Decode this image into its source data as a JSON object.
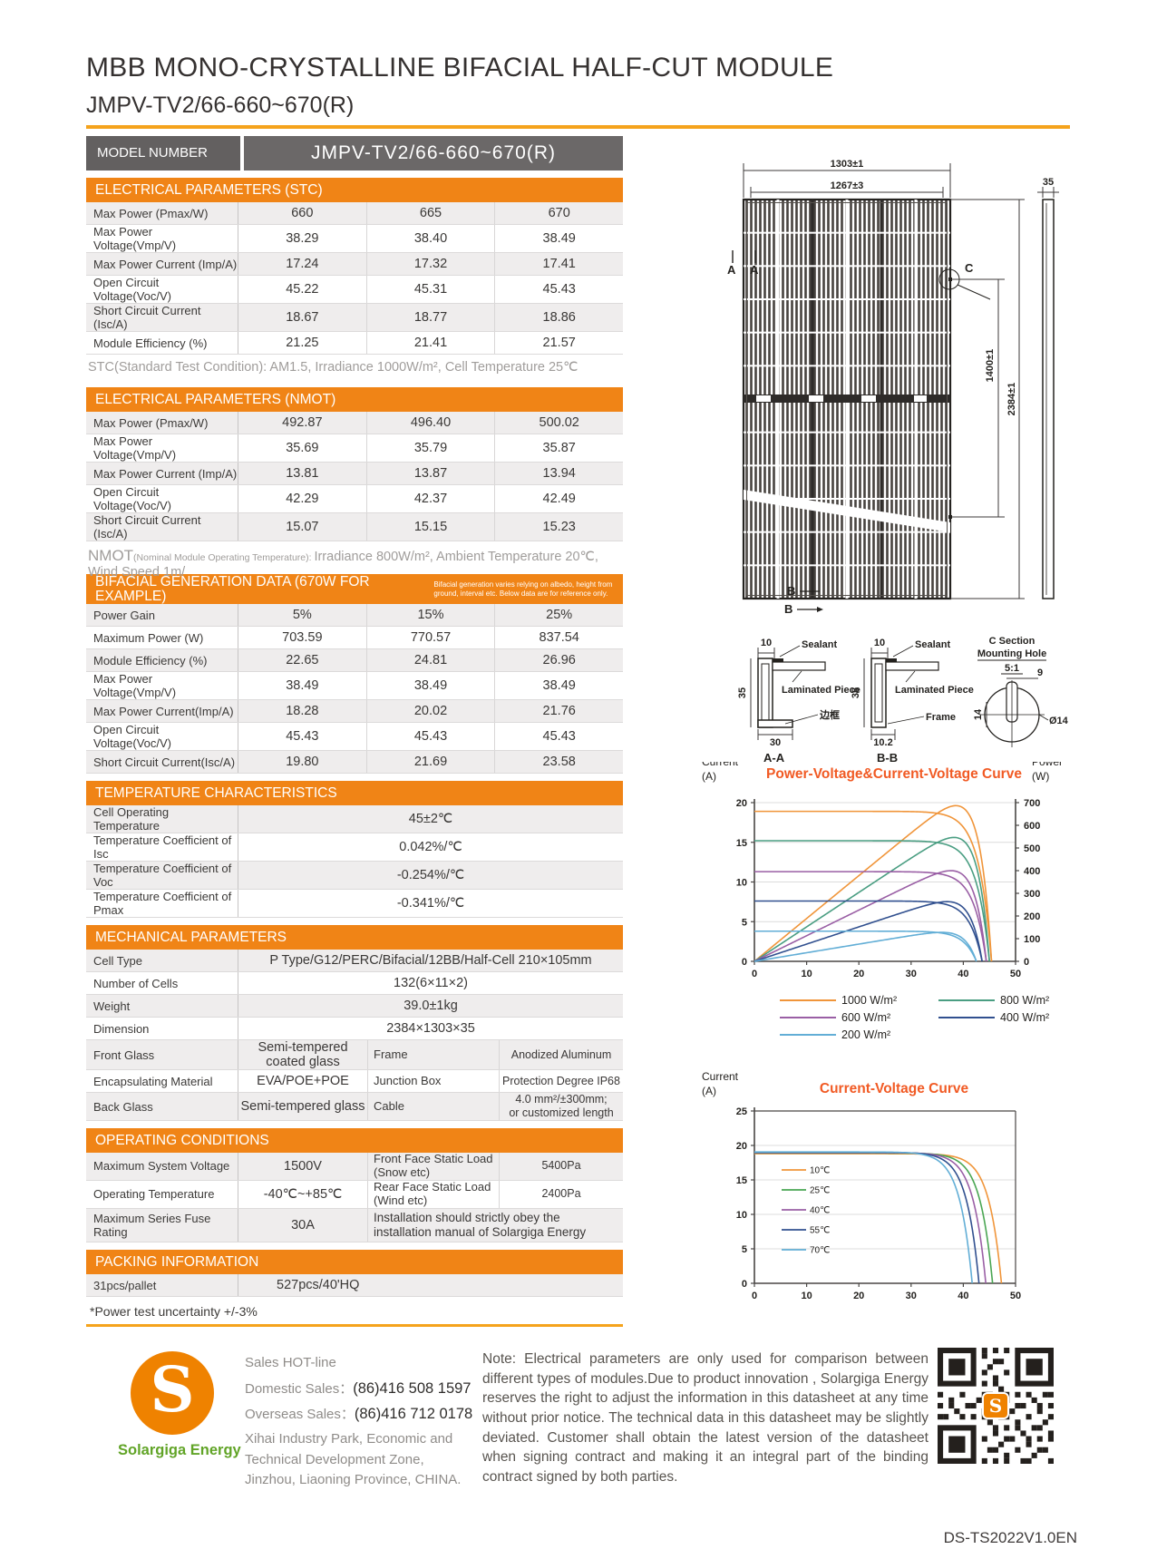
{
  "header": {
    "title": "MBB MONO-CRYSTALLINE BIFACIAL HALF-CUT MODULE",
    "subtitle": "JMPV-TV2/66-660~670(R)"
  },
  "model": {
    "label": "MODEL NUMBER",
    "value": "JMPV-TV2/66-660~670(R)"
  },
  "tables": {
    "stc": {
      "header": "ELECTRICAL PARAMETERS  (STC)",
      "rows": [
        {
          "label": "Max Power (Pmax/W)",
          "values": [
            "660",
            "665",
            "670"
          ]
        },
        {
          "label": "Max Power Voltage(Vmp/V)",
          "values": [
            "38.29",
            "38.40",
            "38.49"
          ]
        },
        {
          "label": "Max Power Current (Imp/A)",
          "values": [
            "17.24",
            "17.32",
            "17.41"
          ]
        },
        {
          "label": "Open Circuit Voltage(Voc/V)",
          "values": [
            "45.22",
            "45.31",
            "45.43"
          ]
        },
        {
          "label": "Short Circuit Current (Isc/A)",
          "values": [
            "18.67",
            "18.77",
            "18.86"
          ]
        },
        {
          "label": "Module Efficiency (%)",
          "values": [
            "21.25",
            "21.41",
            "21.57"
          ]
        }
      ],
      "note": "STC(Standard Test Condition): AM1.5, Irradiance 1000W/m², Cell Temperature 25℃"
    },
    "nmot": {
      "header": "ELECTRICAL PARAMETERS  (NMOT)",
      "rows": [
        {
          "label": "Max Power (Pmax/W)",
          "values": [
            "492.87",
            "496.40",
            "500.02"
          ]
        },
        {
          "label": "Max Power Voltage(Vmp/V)",
          "values": [
            "35.69",
            "35.79",
            "35.87"
          ]
        },
        {
          "label": "Max Power Current (Imp/A)",
          "values": [
            "13.81",
            "13.87",
            "13.94"
          ]
        },
        {
          "label": "Open Circuit Voltage(Voc/V)",
          "values": [
            "42.29",
            "42.37",
            "42.49"
          ]
        },
        {
          "label": "Short Circuit Current (Isc/A)",
          "values": [
            "15.07",
            "15.15",
            "15.23"
          ]
        }
      ],
      "note_prefix": "NMOT",
      "note_paren": "(Nominal Module Operating Temperature): ",
      "note_rest": "Irradiance 800W/m², Ambient Temperature 20℃, Wind Speed 1m/"
    },
    "bifacial": {
      "header": "BIFACIAL GENERATION DATA (670W FOR EXAMPLE)",
      "header_note": "Bifacial generation varies relying on albedo, height from ground, interval etc. Below data are for reference only.",
      "rows": [
        {
          "label": "Power Gain",
          "values": [
            "5%",
            "15%",
            "25%"
          ]
        },
        {
          "label": "Maximum Power (W)",
          "values": [
            "703.59",
            "770.57",
            "837.54"
          ]
        },
        {
          "label": "Module Efficiency (%)",
          "values": [
            "22.65",
            "24.81",
            "26.96"
          ]
        },
        {
          "label": "Max Power Voltage(Vmp/V)",
          "values": [
            "38.49",
            "38.49",
            "38.49"
          ]
        },
        {
          "label": "Max Power Current(Imp/A)",
          "values": [
            "18.28",
            "20.02",
            "21.76"
          ]
        },
        {
          "label": "Open Circuit Voltage(Voc/V)",
          "values": [
            "45.43",
            "45.43",
            "45.43"
          ]
        },
        {
          "label": "Short Circuit Current(Isc/A)",
          "values": [
            "19.80",
            "21.69",
            "23.58"
          ]
        }
      ]
    },
    "temperature": {
      "header": "TEMPERATURE CHARACTERISTICS",
      "rows": [
        {
          "label": "Cell Operating Temperature",
          "value": "45±2℃"
        },
        {
          "label": "Temperature Coefficient of Isc",
          "value": "0.042%/℃"
        },
        {
          "label": "Temperature Coefficient of Voc",
          "value": "-0.254%/℃"
        },
        {
          "label": "Temperature Coefficient of Pmax",
          "value": "-0.341%/℃"
        }
      ]
    },
    "mechanical": {
      "header": "MECHANICAL PARAMETERS",
      "rows": [
        {
          "type": "wide",
          "label": "Cell Type",
          "value": "P Type/G12/PERC/Bifacial/12BB/Half-Cell 210×105mm"
        },
        {
          "type": "wide",
          "label": "Number of Cells",
          "value": "132(6×11×2)"
        },
        {
          "type": "wide",
          "label": "Weight",
          "value": "39.0±1kg"
        },
        {
          "type": "wide",
          "label": "Dimension",
          "value": "2384×1303×35"
        },
        {
          "type": "split",
          "label": "Front Glass",
          "value": "Semi-tempered coated glass",
          "label2": "Frame",
          "value2": "Anodized Aluminum"
        },
        {
          "type": "split",
          "label": "Encapsulating Material",
          "value": "EVA/POE+POE",
          "label2": "Junction Box",
          "value2": "Protection Degree IP68"
        },
        {
          "type": "split",
          "label": "Back Glass",
          "value": "Semi-tempered glass",
          "label2": "Cable",
          "value2": "4.0 mm²/±300mm;\nor customized length"
        }
      ]
    },
    "operating": {
      "header": "OPERATING CONDITIONS",
      "rows": [
        {
          "type": "split",
          "label": "Maximum System Voltage",
          "value": "1500V",
          "label2": "Front Face Static Load\n(Snow etc)",
          "value2": "5400Pa"
        },
        {
          "type": "split",
          "label": "Operating Temperature",
          "value": "-40℃~+85℃",
          "label2": "Rear Face Static Load\n(Wind etc)",
          "value2": "2400Pa"
        },
        {
          "type": "splitnote",
          "label": "Maximum Series Fuse Rating",
          "value": "30A",
          "note": "Installation should strictly obey the installation manual of Solargiga Energy"
        }
      ]
    },
    "packing": {
      "header": "PACKING INFORMATION",
      "rows": [
        {
          "label": "31pcs/pallet",
          "value": "527pcs/40'HQ"
        }
      ]
    },
    "footnote": "*Power test uncertainty  +/-3%"
  },
  "drawing": {
    "dim_width_outer": "1303±1",
    "dim_width_inner": "1267±3",
    "dim_thickness": "35",
    "dim_height_inner": "1400±1",
    "dim_height_outer": "2384±1",
    "section_a": "A",
    "section_b": "B",
    "section_c": "C",
    "aa_label": "A-A",
    "bb_label": "B-B",
    "aa_flange": "10",
    "bb_flange": "10",
    "aa_height": "35",
    "bb_height": "35",
    "aa_width": "30",
    "bb_width": "10.2",
    "sealant": "Sealant",
    "laminated": "Laminated Piece",
    "frame_cn": "边框",
    "frame_en": "Frame",
    "c_title1": "C Section",
    "c_title2": "Mounting Hole",
    "c_scale": "5:1",
    "c_w": "9",
    "c_h": "14",
    "c_dia": "Ø14"
  },
  "chart_data": [
    {
      "type": "line",
      "title": "Power-Voltage&Current-Voltage Curve",
      "y_left_label": "Current\n(A)",
      "y_right_label": "Power\n(W)",
      "x_range": [
        0,
        50
      ],
      "x_ticks": [
        0,
        10,
        20,
        30,
        40,
        50
      ],
      "y_left_range": [
        0,
        20
      ],
      "y_left_ticks": [
        0,
        5,
        10,
        15,
        20
      ],
      "y_right_range": [
        0,
        700
      ],
      "y_right_ticks": [
        0,
        100,
        200,
        300,
        400,
        500,
        600,
        700
      ],
      "grid": true,
      "legend_position": "below",
      "shows_power_curves": true,
      "series": [
        {
          "name": "1000 W/m²",
          "color": "#f0953a",
          "isc": 18.9,
          "voc": 45.4
        },
        {
          "name": "800 W/m²",
          "color": "#4a9e82",
          "isc": 15.2,
          "voc": 45.0
        },
        {
          "name": "600 W/m²",
          "color": "#9a5fa5",
          "isc": 11.3,
          "voc": 44.4
        },
        {
          "name": "400 W/m²",
          "color": "#31508f",
          "isc": 7.6,
          "voc": 43.6
        },
        {
          "name": "200 W/m²",
          "color": "#62aed6",
          "isc": 3.8,
          "voc": 42.5
        }
      ]
    },
    {
      "type": "line",
      "title": "Current-Voltage Curve",
      "y_left_label": "Current\n(A)",
      "x_range": [
        0,
        50
      ],
      "x_ticks": [
        0,
        10,
        20,
        30,
        40,
        50
      ],
      "y_left_range": [
        0,
        25
      ],
      "y_left_ticks": [
        0,
        5,
        10,
        15,
        20,
        25
      ],
      "grid": true,
      "legend_position": "inside-left",
      "series": [
        {
          "name": "10℃",
          "color": "#f0953a",
          "isc": 18.8,
          "voc": 47.3
        },
        {
          "name": "25℃",
          "color": "#4aa653",
          "isc": 18.9,
          "voc": 45.6
        },
        {
          "name": "40℃",
          "color": "#9a5fa5",
          "isc": 18.95,
          "voc": 44.3
        },
        {
          "name": "55℃",
          "color": "#31508f",
          "isc": 19.0,
          "voc": 43.0
        },
        {
          "name": "70℃",
          "color": "#62aed6",
          "isc": 19.05,
          "voc": 41.7
        }
      ]
    }
  ],
  "footer": {
    "hotline": "Sales HOT-line",
    "domestic_label": "Domestic Sales：",
    "domestic_value": "(86)416 508 1597",
    "overseas_label": "Overseas Sales：",
    "overseas_value": "(86)416 712 0178",
    "address": "Xihai Industry Park, Economic and Technical Development Zone, Jinzhou, Liaoning Province, CHINA.",
    "logo_letter": "S",
    "logo_name": "Solargiga Energy",
    "note": "Note:  Electrical parameters are only used for comparison between different types of modules.Due to product innovation , Solargiga Energy reserves the right to adjust the information in this datasheet at any time without prior notice. The technical data in this datasheet may be slightly deviated. Customer shall obtain the latest version of the datasheet when signing contract and making it an integral part of the binding contract signed by both parties.",
    "doc_code": "DS-TS2022V1.0EN"
  },
  "colors": {
    "accent_orange": "#f08416",
    "rule_orange": "#f5a31c",
    "header_gray": "#636060",
    "chart_title_orange": "#f15a24",
    "logo_green": "#61a427"
  }
}
